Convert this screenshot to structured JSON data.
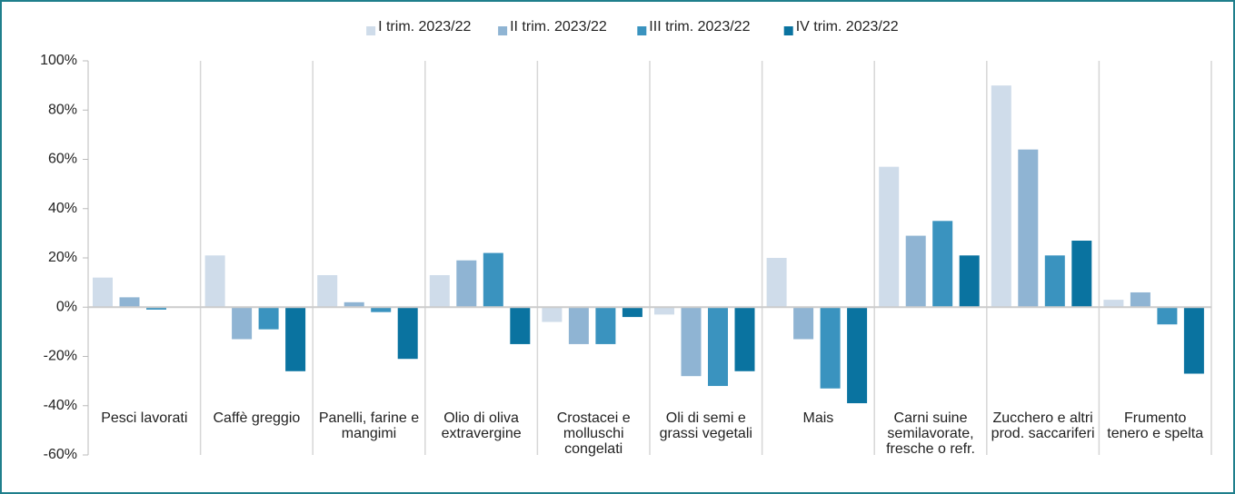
{
  "chart_data": {
    "type": "bar",
    "categories": [
      "Pesci lavorati",
      "Caffè greggio",
      "Panelli, farine e mangimi",
      "Olio di oliva extravergine",
      "Crostacei e molluschi congelati",
      "Oli di semi e grassi vegetali",
      "Mais",
      "Carni suine semilavorate, fresche o refr.",
      "Zucchero e altri prod. saccariferi",
      "Frumento tenero e spelta"
    ],
    "series": [
      {
        "name": "I trim. 2023/22",
        "color": "#cfdcea",
        "values": [
          12,
          21,
          13,
          13,
          -6,
          -3,
          20,
          57,
          90,
          3
        ]
      },
      {
        "name": "II trim. 2023/22",
        "color": "#8fb4d3",
        "values": [
          4,
          -13,
          2,
          19,
          -15,
          -28,
          -13,
          29,
          64,
          6
        ]
      },
      {
        "name": "III trim. 2023/22",
        "color": "#3a93bf",
        "values": [
          -1,
          -9,
          -2,
          22,
          -15,
          -32,
          -33,
          35,
          21,
          -7
        ]
      },
      {
        "name": "IV trim. 2023/22",
        "color": "#0a73a0",
        "values": [
          0,
          -26,
          -21,
          -15,
          -4,
          -26,
          -39,
          21,
          27,
          -27
        ]
      }
    ],
    "ylim": [
      -60,
      100
    ],
    "yticks": [
      {
        "value": -60,
        "label": "-60%"
      },
      {
        "value": -40,
        "label": "-40%"
      },
      {
        "value": -20,
        "label": "-20%"
      },
      {
        "value": 0,
        "label": "0%"
      },
      {
        "value": 20,
        "label": "20%"
      },
      {
        "value": 40,
        "label": "40%"
      },
      {
        "value": 60,
        "label": "60%"
      },
      {
        "value": 80,
        "label": "80%"
      },
      {
        "value": 100,
        "label": "100%"
      }
    ],
    "legend": "top"
  }
}
